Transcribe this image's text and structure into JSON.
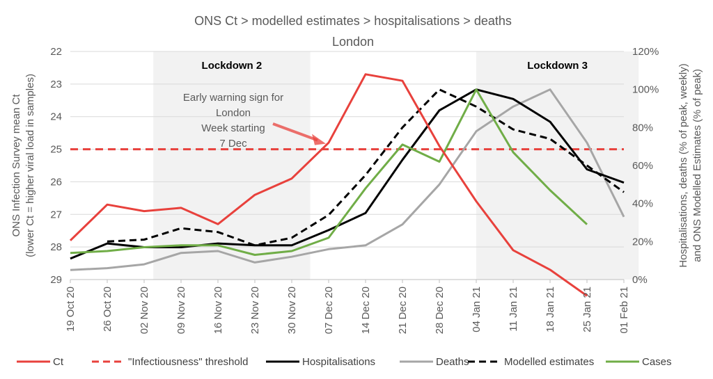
{
  "chart_data": {
    "type": "line",
    "title": "ONS Ct > modelled  estimates > hospitalisations > deaths",
    "subtitle": "London",
    "categories": [
      "19 Oct 20",
      "26 Oct 20",
      "02 Nov 20",
      "09 Nov 20",
      "16 Nov 20",
      "23 Nov 20",
      "30 Nov 20",
      "07 Dec 20",
      "14 Dec 20",
      "21 Dec 20",
      "28 Dec 20",
      "04 Jan 21",
      "11 Jan 21",
      "18 Jan 21",
      "25 Jan 21",
      "01 Feb 21"
    ],
    "y_left": {
      "label_line1": "ONS Infection Survey mean Ct",
      "label_line2": "(lower Ct = higher viral load in samples)",
      "range": [
        22,
        29
      ],
      "inverted": true,
      "ticks": [
        "22",
        "23",
        "24",
        "25",
        "26",
        "27",
        "28",
        "29"
      ]
    },
    "y_right": {
      "label_line1": "Hospitalisations, deaths (% of peak, weekly)",
      "label_line2": "and ONS Modelled Estimates (% of peak)",
      "range": [
        0,
        120
      ],
      "ticks": [
        "0%",
        "20%",
        "40%",
        "60%",
        "80%",
        "100%",
        "120%"
      ]
    },
    "shaded_periods": [
      {
        "label": "Lockdown 2",
        "from": 2.25,
        "to": 6.5
      },
      {
        "label": "Lockdown 3",
        "from": 11.0,
        "to": 15.4
      }
    ],
    "threshold": {
      "name": "\"Infectiousness\" threshold",
      "value": 25,
      "color": "#e8413c"
    },
    "annotation": {
      "lines": [
        "Early warning sign for",
        "London",
        "Week starting",
        "7 Dec"
      ],
      "arrow_to_x": 7
    },
    "series": [
      {
        "name": "Ct",
        "axis": "left",
        "color": "#e8413c",
        "style": "solid",
        "values": [
          27.8,
          26.7,
          26.9,
          26.8,
          27.3,
          26.4,
          25.9,
          24.8,
          22.7,
          22.9,
          24.9,
          26.6,
          28.1,
          28.7,
          29.5,
          null
        ]
      },
      {
        "name": "\"Infectiousness\" threshold",
        "axis": "left",
        "color": "#e8413c",
        "style": "dashed",
        "values": [
          25,
          25,
          25,
          25,
          25,
          25,
          25,
          25,
          25,
          25,
          25,
          25,
          25,
          25,
          25,
          25
        ]
      },
      {
        "name": "Hospitalisations",
        "axis": "right",
        "color": "#000000",
        "style": "solid",
        "values": [
          11,
          19,
          17,
          17,
          19,
          18,
          18,
          26,
          35,
          63,
          89,
          100,
          95,
          83,
          58,
          51
        ]
      },
      {
        "name": "Deaths",
        "axis": "right",
        "color": "#a6a6a6",
        "style": "solid",
        "values": [
          5,
          6,
          8,
          14,
          15,
          9,
          12,
          16,
          18,
          29,
          50,
          78,
          91,
          100,
          72,
          33
        ]
      },
      {
        "name": "Modelled estimates",
        "axis": "right",
        "color": "#000000",
        "style": "dashed",
        "values": [
          null,
          20,
          21,
          27,
          25,
          18,
          22,
          34,
          55,
          80,
          100,
          91,
          79,
          74,
          60,
          46
        ]
      },
      {
        "name": "Cases",
        "axis": "right",
        "color": "#70ad47",
        "style": "solid",
        "values": [
          14,
          15,
          17,
          18,
          18,
          13,
          15,
          22,
          48,
          71,
          62,
          100,
          67,
          47,
          29,
          null
        ]
      }
    ],
    "legend_position": "bottom"
  }
}
